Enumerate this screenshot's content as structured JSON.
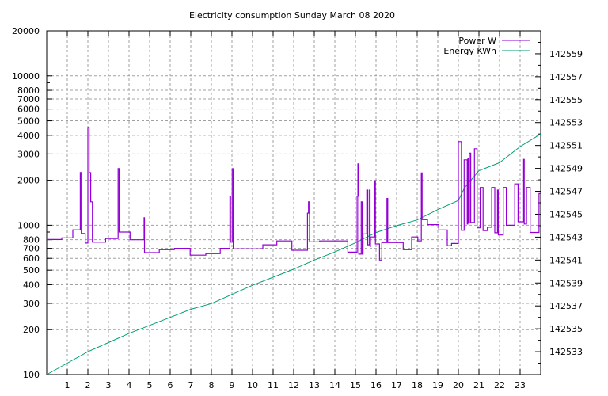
{
  "chart_data": {
    "type": "line",
    "title": "Electricity consumption Sunday March 08 2020",
    "xlabel": "",
    "ylabel": "",
    "xlim": [
      0,
      24
    ],
    "x_ticks": [
      1,
      2,
      3,
      4,
      5,
      6,
      7,
      8,
      9,
      10,
      11,
      12,
      13,
      14,
      15,
      16,
      17,
      18,
      19,
      20,
      21,
      22,
      23
    ],
    "y_scale": "log",
    "ylim": [
      100,
      20000
    ],
    "y_ticks": [
      100,
      200,
      300,
      400,
      500,
      600,
      700,
      800,
      1000,
      2000,
      3000,
      4000,
      5000,
      6000,
      7000,
      8000,
      10000,
      20000
    ],
    "y2lim": [
      142531,
      142561
    ],
    "y2_ticks": [
      142533,
      142535,
      142537,
      142539,
      142541,
      142543,
      142545,
      142547,
      142549,
      142551,
      142553,
      142555,
      142557,
      142559
    ],
    "grid": true,
    "legend_position": "top-right",
    "series": [
      {
        "name": "Power W",
        "axis": "y",
        "style": "steps",
        "color": "#9400d3",
        "points": [
          [
            0,
            803
          ],
          [
            0.73,
            822
          ],
          [
            1.27,
            931
          ],
          [
            1.63,
            2254
          ],
          [
            1.68,
            880
          ],
          [
            1.87,
            760
          ],
          [
            2.0,
            4520
          ],
          [
            2.06,
            2250
          ],
          [
            2.14,
            1435
          ],
          [
            2.22,
            770
          ],
          [
            2.86,
            815
          ],
          [
            3.47,
            2395
          ],
          [
            3.52,
            900
          ],
          [
            4.05,
            800
          ],
          [
            4.73,
            1124
          ],
          [
            4.75,
            655
          ],
          [
            5.47,
            686
          ],
          [
            6.2,
            700
          ],
          [
            6.97,
            630
          ],
          [
            7.73,
            645
          ],
          [
            8.43,
            700
          ],
          [
            8.9,
            1563
          ],
          [
            8.93,
            770
          ],
          [
            9.01,
            2390
          ],
          [
            9.06,
            695
          ],
          [
            10.5,
            740
          ],
          [
            11.18,
            785
          ],
          [
            11.91,
            680
          ],
          [
            12.67,
            1205
          ],
          [
            12.72,
            1435
          ],
          [
            12.77,
            775
          ],
          [
            13.26,
            785
          ],
          [
            14.63,
            660
          ],
          [
            15.08,
            1563
          ],
          [
            15.12,
            2575
          ],
          [
            15.16,
            640
          ],
          [
            15.28,
            1435
          ],
          [
            15.33,
            640
          ],
          [
            15.37,
            875
          ],
          [
            15.55,
            1720
          ],
          [
            15.6,
            740
          ],
          [
            15.68,
            1720
          ],
          [
            15.71,
            720
          ],
          [
            15.73,
            835
          ],
          [
            15.93,
            1985
          ],
          [
            15.97,
            750
          ],
          [
            16.17,
            585
          ],
          [
            16.28,
            765
          ],
          [
            16.53,
            1510
          ],
          [
            16.57,
            765
          ],
          [
            17.32,
            686
          ],
          [
            17.73,
            835
          ],
          [
            18.03,
            785
          ],
          [
            18.2,
            2240
          ],
          [
            18.24,
            1090
          ],
          [
            18.5,
            1010
          ],
          [
            19.05,
            930
          ],
          [
            19.46,
            730
          ],
          [
            19.67,
            755
          ],
          [
            20.0,
            3630
          ],
          [
            20.15,
            925
          ],
          [
            20.28,
            2740
          ],
          [
            20.43,
            1020
          ],
          [
            20.46,
            2800
          ],
          [
            20.5,
            1045
          ],
          [
            20.54,
            3040
          ],
          [
            20.6,
            1045
          ],
          [
            20.78,
            3250
          ],
          [
            20.91,
            960
          ],
          [
            21.06,
            1790
          ],
          [
            21.2,
            920
          ],
          [
            21.41,
            970
          ],
          [
            21.62,
            1790
          ],
          [
            21.77,
            890
          ],
          [
            21.9,
            1720
          ],
          [
            21.94,
            860
          ],
          [
            22.18,
            1790
          ],
          [
            22.33,
            1000
          ],
          [
            22.74,
            1890
          ],
          [
            22.9,
            1055
          ],
          [
            23.17,
            2760
          ],
          [
            23.2,
            1020
          ],
          [
            23.31,
            1790
          ],
          [
            23.49,
            895
          ],
          [
            23.92,
            1630
          ],
          [
            24,
            1630
          ]
        ]
      },
      {
        "name": "Energy KWh",
        "axis": "y2",
        "style": "line",
        "color": "#009e73",
        "points": [
          [
            0,
            142531
          ],
          [
            1,
            142532
          ],
          [
            2,
            142533
          ],
          [
            3,
            142533.8
          ],
          [
            4,
            142534.6
          ],
          [
            5,
            142535.3
          ],
          [
            6,
            142536
          ],
          [
            7,
            142536.7
          ],
          [
            8,
            142537.2
          ],
          [
            9,
            142538
          ],
          [
            10,
            142538.8
          ],
          [
            11,
            142539.5
          ],
          [
            12,
            142540.2
          ],
          [
            13,
            142541
          ],
          [
            14,
            142541.7
          ],
          [
            15,
            142542.5
          ],
          [
            16,
            142543.4
          ],
          [
            17,
            142544
          ],
          [
            18,
            142544.5
          ],
          [
            19,
            142545.4
          ],
          [
            20,
            142546.2
          ],
          [
            20.3,
            142547.3
          ],
          [
            21,
            142548.8
          ],
          [
            22,
            142549.5
          ],
          [
            23,
            142550.9
          ],
          [
            24,
            142552
          ]
        ]
      }
    ]
  }
}
